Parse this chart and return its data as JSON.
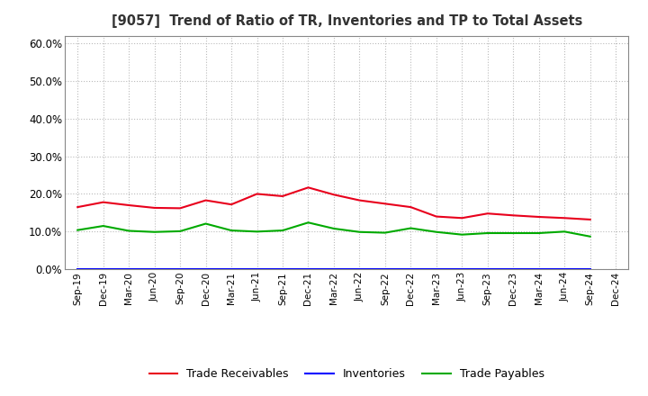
{
  "title": "[9057]  Trend of Ratio of TR, Inventories and TP to Total Assets",
  "labels": [
    "Sep-19",
    "Dec-19",
    "Mar-20",
    "Jun-20",
    "Sep-20",
    "Dec-20",
    "Mar-21",
    "Jun-21",
    "Sep-21",
    "Dec-21",
    "Mar-22",
    "Jun-22",
    "Sep-22",
    "Dec-22",
    "Mar-23",
    "Jun-23",
    "Sep-23",
    "Dec-23",
    "Mar-24",
    "Jun-24",
    "Sep-24",
    "Dec-24"
  ],
  "trade_receivables": [
    0.165,
    0.178,
    0.17,
    0.163,
    0.162,
    0.183,
    0.172,
    0.2,
    0.194,
    0.217,
    0.198,
    0.183,
    0.174,
    0.165,
    0.14,
    0.136,
    0.148,
    0.143,
    0.139,
    0.136,
    0.132,
    null
  ],
  "inventories": [
    0.001,
    0.001,
    0.001,
    0.001,
    0.001,
    0.001,
    0.001,
    0.001,
    0.001,
    0.001,
    0.001,
    0.001,
    0.001,
    0.001,
    0.001,
    0.001,
    0.001,
    0.001,
    0.001,
    0.001,
    0.001,
    null
  ],
  "trade_payables": [
    0.104,
    0.115,
    0.102,
    0.099,
    0.101,
    0.121,
    0.103,
    0.1,
    0.103,
    0.124,
    0.108,
    0.099,
    0.097,
    0.109,
    0.099,
    0.092,
    0.096,
    0.096,
    0.096,
    0.1,
    0.087,
    null
  ],
  "tr_color": "#e8001c",
  "inv_color": "#0000ff",
  "tp_color": "#00aa00",
  "ylim": [
    0.0,
    0.62
  ],
  "yticks": [
    0.0,
    0.1,
    0.2,
    0.3,
    0.4,
    0.5,
    0.6
  ],
  "bg_color": "#ffffff",
  "plot_bg_color": "#ffffff",
  "grid_color": "#aaaaaa",
  "legend_labels": [
    "Trade Receivables",
    "Inventories",
    "Trade Payables"
  ]
}
